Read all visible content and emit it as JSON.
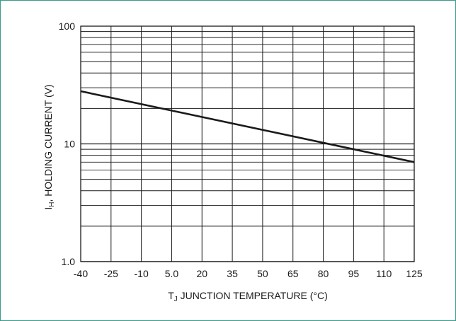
{
  "chart_data": {
    "type": "line",
    "ylabel": "I_H, HOLDING CURRENT (V)",
    "ylabel_main": "I",
    "ylabel_sub": "H",
    "ylabel_rest": ", HOLDING CURRENT (V)",
    "xlabel": "T_J JUNCTION TEMPERATURE (°C)",
    "xlabel_main": "T",
    "xlabel_sub": "J",
    "xlabel_rest": " JUNCTION TEMPERATURE (°C)",
    "x_ticks": [
      -40,
      -25,
      -10,
      5.0,
      20,
      35,
      50,
      65,
      80,
      95,
      110,
      125
    ],
    "x_tick_labels": [
      "-40",
      "-25",
      "-10",
      "5.0",
      "20",
      "35",
      "50",
      "65",
      "80",
      "95",
      "110",
      "125"
    ],
    "y_tick_labels": [
      "100",
      "10",
      "1.0"
    ],
    "ylim": [
      1,
      100
    ],
    "xlim": [
      -40,
      125
    ],
    "y_scale": "log",
    "grid": true,
    "series": [
      {
        "x": [
          -40,
          125
        ],
        "y": [
          28,
          7
        ]
      }
    ],
    "colors": {
      "line": "#1a1a1a",
      "grid": "#1a1a1a",
      "frame": "#3a9a8a"
    }
  }
}
